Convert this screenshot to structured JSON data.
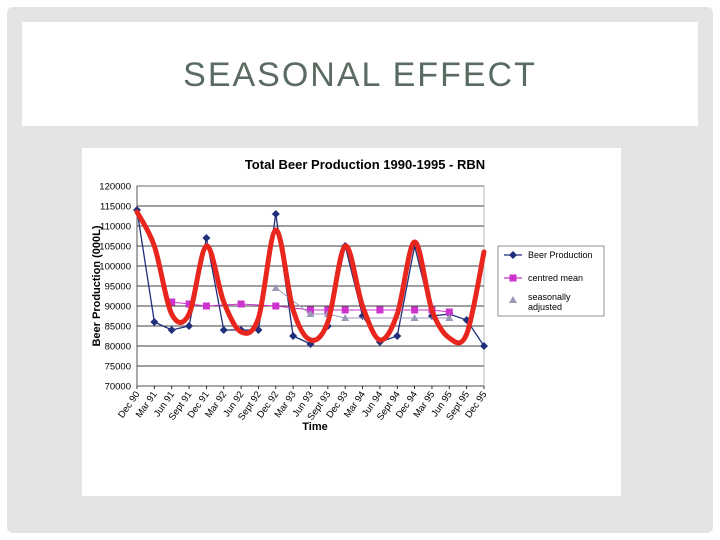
{
  "slide": {
    "title": "SEASONAL EFFECT"
  },
  "colors": {
    "beer": "#1f2f7a",
    "mean": "#cc33cc",
    "adjusted": "#9a9ab8",
    "annotation": "#e8261e",
    "grid": "#000000"
  },
  "chart_data": {
    "type": "line",
    "title": "Total Beer Production 1990-1995 - RBN",
    "xlabel": "Time",
    "ylabel": "Beer Production (000L)",
    "ylim": [
      70000,
      120000
    ],
    "yticks": [
      70000,
      75000,
      80000,
      85000,
      90000,
      95000,
      100000,
      105000,
      110000,
      115000,
      120000
    ],
    "ytick_labels": [
      "70000",
      "75000",
      "80000",
      "85000",
      "90000",
      "95000",
      "100000",
      "105000",
      "110000",
      "115000",
      "120000"
    ],
    "categories": [
      "Dec 90",
      "Mar 91",
      "Jun 91",
      "Sept 91",
      "Dec 91",
      "Mar 92",
      "Jun 92",
      "Sept 92",
      "Dec 92",
      "Mar 93",
      "Jun 93",
      "Sept 93",
      "Dec 93",
      "Mar 94",
      "Jun 94",
      "Sept 94",
      "Dec 94",
      "Mar 95",
      "Jun 95",
      "Sept 95",
      "Dec 95"
    ],
    "grid": true,
    "legend_position": "right",
    "series": [
      {
        "name": "Beer Production",
        "marker": "diamond",
        "values": [
          114000,
          86000,
          84000,
          85000,
          107000,
          84000,
          84000,
          84000,
          113000,
          82500,
          80500,
          85000,
          105000,
          87500,
          81000,
          82500,
          105000,
          87500,
          88000,
          86500,
          80000
        ]
      },
      {
        "name": "centred mean",
        "marker": "square",
        "values": [
          null,
          null,
          91000,
          90500,
          90000,
          null,
          90500,
          null,
          90000,
          null,
          89000,
          89000,
          89000,
          null,
          89000,
          null,
          89000,
          89000,
          88500,
          null,
          null
        ]
      },
      {
        "name": "seasonally adjusted",
        "marker": "triangle",
        "values": [
          null,
          null,
          null,
          null,
          null,
          null,
          null,
          null,
          94500,
          null,
          88000,
          88000,
          87000,
          null,
          null,
          null,
          87000,
          null,
          87000,
          null,
          null
        ]
      }
    ],
    "annotation": {
      "type": "freehand-curve",
      "description": "red hand-drawn seasonal wave",
      "values": [
        113500,
        105000,
        88000,
        88000,
        105000,
        91000,
        83500,
        87000,
        109000,
        89000,
        81500,
        86000,
        105000,
        90000,
        81500,
        88000,
        106000,
        89000,
        82000,
        83000,
        103500
      ]
    }
  }
}
